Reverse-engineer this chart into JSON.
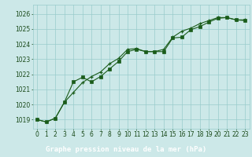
{
  "title": "Graphe pression niveau de la mer (hPa)",
  "background_color": "#cce8e8",
  "plot_bg_color": "#cce8e8",
  "label_bg_color": "#2d6b2d",
  "grid_color": "#99cccc",
  "line_color": "#1a5c1a",
  "marker_color": "#1a5c1a",
  "tick_color": "#1a4a1a",
  "label_text_color": "#ffffff",
  "ylabel_labels": [
    1019,
    1020,
    1021,
    1022,
    1023,
    1024,
    1025,
    1026
  ],
  "ylim": [
    1018.4,
    1026.6
  ],
  "xlim": [
    -0.5,
    23.5
  ],
  "xticks": [
    0,
    1,
    2,
    3,
    4,
    5,
    6,
    7,
    8,
    9,
    10,
    11,
    12,
    13,
    14,
    15,
    16,
    17,
    18,
    19,
    20,
    21,
    22,
    23
  ],
  "series1": [
    1019.0,
    1018.85,
    1019.1,
    1020.15,
    1020.8,
    1021.45,
    1021.85,
    1022.15,
    1022.7,
    1023.05,
    1023.65,
    1023.7,
    1023.5,
    1023.5,
    1023.65,
    1024.45,
    1024.85,
    1025.05,
    1025.35,
    1025.55,
    1025.75,
    1025.75,
    1025.6,
    1025.6
  ],
  "series2": [
    1019.0,
    1018.85,
    1019.1,
    1020.15,
    1021.5,
    1021.8,
    1021.5,
    1021.85,
    1022.35,
    1022.85,
    1023.5,
    1023.65,
    1023.5,
    1023.5,
    1023.5,
    1024.4,
    1024.45,
    1024.95,
    1025.15,
    1025.45,
    1025.7,
    1025.75,
    1025.6,
    1025.55
  ],
  "tick_fontsize": 5.5,
  "xlabel_fontsize": 6.5
}
